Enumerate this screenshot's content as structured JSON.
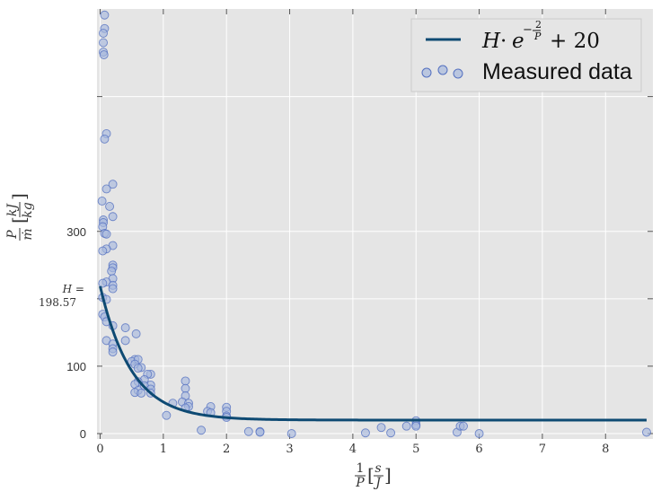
{
  "chart_data": {
    "type": "scatter",
    "xlabel": "1/P [s/J]",
    "ylabel": "P/ṁ [kJ/kg]",
    "xlim": [
      -0.05,
      8.75
    ],
    "ylim": [
      -8,
      630
    ],
    "xticks": [
      0,
      1,
      2,
      3,
      4,
      5,
      6,
      7,
      8
    ],
    "yticks": [
      0,
      100,
      300
    ],
    "grid": true,
    "legend_position": "top-right",
    "colors": {
      "background": "#e5e5e5",
      "grid": "#ffffff",
      "line": "#0e4a73",
      "marker_fill": "#a8b9dd",
      "marker_edge": "#5470c0"
    },
    "annotation": {
      "line1": "H =",
      "line2": "198.57",
      "y": 198.57
    },
    "series": [
      {
        "name": "H · e^(−2/P) + 20",
        "type": "line",
        "H": 198.57,
        "k": 2,
        "offset": 20
      },
      {
        "name": "Measured data",
        "type": "scatter",
        "points": [
          [
            0.07,
            621
          ],
          [
            0.07,
            601
          ],
          [
            0.05,
            594
          ],
          [
            0.05,
            580
          ],
          [
            0.05,
            566
          ],
          [
            0.06,
            562
          ],
          [
            0.1,
            445
          ],
          [
            0.07,
            437
          ],
          [
            0.2,
            370
          ],
          [
            0.1,
            363
          ],
          [
            0.03,
            345
          ],
          [
            0.15,
            337
          ],
          [
            0.2,
            322
          ],
          [
            0.05,
            317
          ],
          [
            0.05,
            313
          ],
          [
            0.04,
            307
          ],
          [
            0.07,
            297
          ],
          [
            0.1,
            296
          ],
          [
            0.2,
            279
          ],
          [
            0.1,
            274
          ],
          [
            0.04,
            271
          ],
          [
            0.2,
            250
          ],
          [
            0.2,
            246
          ],
          [
            0.18,
            241
          ],
          [
            0.2,
            230
          ],
          [
            0.1,
            225
          ],
          [
            0.04,
            223
          ],
          [
            0.2,
            220
          ],
          [
            0.2,
            215
          ],
          [
            0.04,
            202
          ],
          [
            0.1,
            199
          ],
          [
            0.04,
            177
          ],
          [
            0.07,
            173
          ],
          [
            0.1,
            166
          ],
          [
            0.2,
            160
          ],
          [
            0.4,
            157
          ],
          [
            0.57,
            148
          ],
          [
            0.1,
            138
          ],
          [
            0.4,
            138
          ],
          [
            0.2,
            133
          ],
          [
            0.2,
            126
          ],
          [
            0.2,
            121
          ],
          [
            0.55,
            110
          ],
          [
            0.5,
            107
          ],
          [
            0.6,
            110
          ],
          [
            0.55,
            103
          ],
          [
            0.65,
            98
          ],
          [
            0.6,
            97
          ],
          [
            0.8,
            88
          ],
          [
            0.75,
            88
          ],
          [
            0.7,
            80
          ],
          [
            0.6,
            77
          ],
          [
            0.55,
            73
          ],
          [
            0.8,
            72
          ],
          [
            0.7,
            71
          ],
          [
            0.8,
            66
          ],
          [
            0.6,
            64
          ],
          [
            0.55,
            61
          ],
          [
            0.8,
            60
          ],
          [
            0.65,
            60
          ],
          [
            1.35,
            78
          ],
          [
            1.35,
            67
          ],
          [
            1.35,
            56
          ],
          [
            1.15,
            45
          ],
          [
            1.3,
            47
          ],
          [
            1.4,
            45
          ],
          [
            1.4,
            40
          ],
          [
            1.35,
            38
          ],
          [
            1.75,
            40
          ],
          [
            1.7,
            33
          ],
          [
            1.75,
            31
          ],
          [
            2.0,
            39
          ],
          [
            2.0,
            33
          ],
          [
            2.0,
            26
          ],
          [
            2.0,
            24
          ],
          [
            1.05,
            27
          ],
          [
            1.6,
            5
          ],
          [
            2.35,
            3
          ],
          [
            2.53,
            3
          ],
          [
            2.53,
            2
          ],
          [
            3.03,
            0
          ],
          [
            4.2,
            1
          ],
          [
            4.45,
            9
          ],
          [
            4.6,
            1
          ],
          [
            4.85,
            11
          ],
          [
            5.0,
            19
          ],
          [
            5.0,
            13
          ],
          [
            5.0,
            11
          ],
          [
            5.65,
            2
          ],
          [
            5.7,
            11
          ],
          [
            5.75,
            11
          ],
          [
            6.0,
            0
          ],
          [
            8.65,
            2
          ]
        ]
      }
    ]
  }
}
